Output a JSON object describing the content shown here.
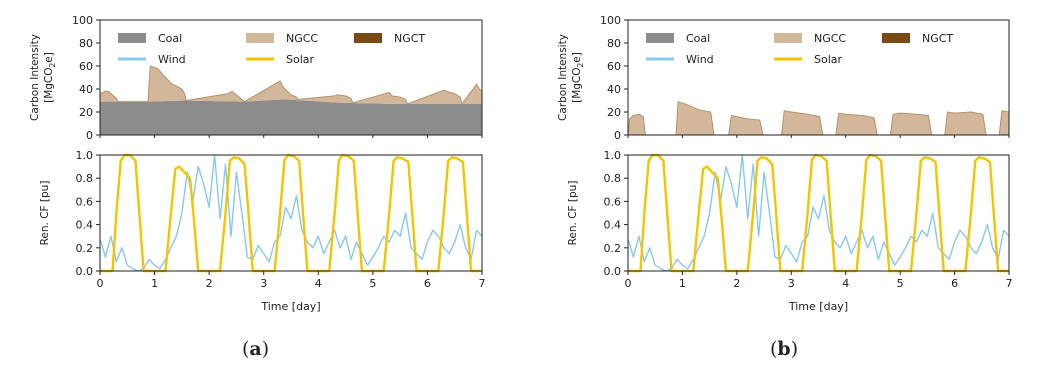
{
  "chart_data": [
    {
      "panel": "(a)",
      "type": "area",
      "ylabel": "Carbon Intensity [MgCO2e]",
      "ylabel_line1": "Carbon Intensity",
      "ylabel_line2_parts": [
        "[MgCO",
        "2",
        "e]"
      ],
      "ylim": [
        0,
        100
      ],
      "yticks": [
        0,
        20,
        40,
        60,
        80,
        100
      ],
      "xlim": [
        0,
        7
      ],
      "xticks": [
        0,
        1,
        2,
        3,
        4,
        5,
        6,
        7
      ],
      "legend": {
        "placement": "top",
        "entries": [
          "Coal",
          "NGCC",
          "NGCT",
          "Wind",
          "Solar"
        ]
      },
      "series": [
        {
          "name": "Coal",
          "x": [
            0,
            0.9,
            1.55,
            2.6,
            3.4,
            4.4,
            5.4,
            6.3,
            7
          ],
          "values": [
            29,
            29,
            30,
            29,
            31,
            28,
            27,
            27,
            27
          ]
        },
        {
          "name": "NGCC",
          "x": [
            0,
            0.1,
            0.15,
            0.3,
            0.33,
            0.88,
            0.92,
            1.05,
            1.3,
            1.5,
            1.55,
            1.58,
            2.35,
            2.42,
            2.55,
            2.62,
            2.65,
            3.3,
            3.35,
            3.5,
            3.6,
            3.63,
            4.3,
            4.35,
            4.5,
            4.6,
            4.63,
            5.3,
            5.35,
            5.5,
            5.6,
            5.63,
            6.3,
            6.35,
            6.5,
            6.6,
            6.63,
            6.9,
            6.95,
            7
          ],
          "values": [
            36,
            38,
            38,
            32,
            29,
            29,
            60,
            58,
            45,
            40,
            36,
            30,
            36,
            38,
            33,
            30,
            29,
            47,
            42,
            35,
            33,
            31,
            34,
            35,
            34,
            32,
            28,
            37,
            34,
            33,
            31,
            27,
            39,
            38,
            36,
            33,
            27,
            44,
            40,
            38
          ]
        },
        {
          "name": "NGCT",
          "values": []
        }
      ]
    },
    {
      "panel": "(a)",
      "type": "line",
      "ylabel": "Ren. CF [pu]",
      "xlabel": "Time [day]",
      "ylim": [
        0,
        1.0
      ],
      "yticks": [
        "0.0",
        "0.2",
        "0.4",
        "0.6",
        "0.8",
        "1.0"
      ],
      "xlim": [
        0,
        7
      ],
      "xticks": [
        0,
        1,
        2,
        3,
        4,
        5,
        6,
        7
      ],
      "series": [
        {
          "name": "Wind",
          "x": [
            0,
            0.1,
            0.2,
            0.3,
            0.4,
            0.5,
            0.6,
            0.7,
            0.8,
            0.9,
            1.0,
            1.1,
            1.2,
            1.3,
            1.4,
            1.5,
            1.6,
            1.7,
            1.8,
            1.9,
            2.0,
            2.1,
            2.2,
            2.3,
            2.4,
            2.5,
            2.6,
            2.7,
            2.8,
            2.9,
            3.0,
            3.1,
            3.2,
            3.3,
            3.4,
            3.5,
            3.6,
            3.7,
            3.8,
            3.9,
            4.0,
            4.1,
            4.2,
            4.3,
            4.4,
            4.5,
            4.6,
            4.7,
            4.8,
            4.9,
            5.0,
            5.1,
            5.2,
            5.3,
            5.4,
            5.5,
            5.6,
            5.7,
            5.8,
            5.9,
            6.0,
            6.1,
            6.2,
            6.3,
            6.4,
            6.5,
            6.6,
            6.7,
            6.8,
            6.9,
            7.0
          ],
          "values": [
            0.28,
            0.12,
            0.3,
            0.08,
            0.2,
            0.05,
            0.02,
            0.0,
            0.02,
            0.1,
            0.05,
            0.02,
            0.1,
            0.2,
            0.3,
            0.5,
            0.85,
            0.6,
            0.9,
            0.75,
            0.55,
            1.0,
            0.45,
            0.92,
            0.3,
            0.85,
            0.5,
            0.12,
            0.1,
            0.22,
            0.15,
            0.08,
            0.25,
            0.3,
            0.55,
            0.45,
            0.65,
            0.35,
            0.25,
            0.2,
            0.3,
            0.15,
            0.25,
            0.35,
            0.2,
            0.3,
            0.1,
            0.25,
            0.15,
            0.05,
            0.12,
            0.2,
            0.3,
            0.25,
            0.35,
            0.3,
            0.5,
            0.2,
            0.15,
            0.1,
            0.25,
            0.35,
            0.3,
            0.2,
            0.15,
            0.25,
            0.4,
            0.2,
            0.1,
            0.35,
            0.3
          ]
        },
        {
          "name": "Solar",
          "x": [
            0,
            0.23,
            0.3,
            0.38,
            0.45,
            0.55,
            0.65,
            0.72,
            0.8,
            1.2,
            1.3,
            1.38,
            1.45,
            1.55,
            1.65,
            1.72,
            1.8,
            2.2,
            2.3,
            2.38,
            2.45,
            2.55,
            2.65,
            2.72,
            2.8,
            3.2,
            3.3,
            3.38,
            3.45,
            3.55,
            3.65,
            3.72,
            3.8,
            4.2,
            4.3,
            4.38,
            4.45,
            4.55,
            4.65,
            4.72,
            4.8,
            5.2,
            5.3,
            5.38,
            5.45,
            5.55,
            5.65,
            5.72,
            5.8,
            6.2,
            6.3,
            6.38,
            6.45,
            6.55,
            6.65,
            6.72,
            6.8,
            7.0
          ],
          "values": [
            0,
            0,
            0.5,
            0.95,
            1.0,
            1.0,
            0.95,
            0.5,
            0,
            0,
            0.5,
            0.88,
            0.9,
            0.85,
            0.8,
            0.45,
            0,
            0,
            0.5,
            0.95,
            0.98,
            0.97,
            0.92,
            0.5,
            0,
            0,
            0.5,
            0.96,
            1.0,
            0.99,
            0.95,
            0.5,
            0,
            0,
            0.5,
            0.96,
            1.0,
            0.99,
            0.95,
            0.5,
            0,
            0,
            0.5,
            0.95,
            0.98,
            0.97,
            0.94,
            0.5,
            0,
            0,
            0.5,
            0.95,
            0.98,
            0.97,
            0.94,
            0.5,
            0,
            0
          ]
        }
      ]
    },
    {
      "panel": "(b)",
      "type": "area",
      "ylabel": "Carbon Intensity [MgCO2e]",
      "ylabel_line1": "Carbon Intensity",
      "ylabel_line2_parts": [
        "[MgCO",
        "2",
        "e]"
      ],
      "ylim": [
        0,
        100
      ],
      "yticks": [
        0,
        20,
        40,
        60,
        80,
        100
      ],
      "xlim": [
        0,
        7
      ],
      "xticks": [
        0,
        1,
        2,
        3,
        4,
        5,
        6,
        7
      ],
      "legend": {
        "placement": "top",
        "entries": [
          "Coal",
          "NGCC",
          "NGCT",
          "Wind",
          "Solar"
        ]
      },
      "series": [
        {
          "name": "Coal",
          "values": []
        },
        {
          "name": "NGCC",
          "x": [
            0,
            0.03,
            0.1,
            0.2,
            0.28,
            0.32,
            0.88,
            0.92,
            1.05,
            1.3,
            1.52,
            1.58,
            1.85,
            1.9,
            2.0,
            2.2,
            2.42,
            2.48,
            2.82,
            2.87,
            3.0,
            3.3,
            3.52,
            3.58,
            3.82,
            3.87,
            4.0,
            4.3,
            4.52,
            4.58,
            4.82,
            4.87,
            5.0,
            5.3,
            5.52,
            5.58,
            5.82,
            5.87,
            6.0,
            6.3,
            6.52,
            6.58,
            6.82,
            6.87,
            7.0
          ],
          "values": [
            0,
            14,
            17,
            18,
            16,
            0,
            0,
            29,
            27,
            22,
            20,
            0,
            0,
            17,
            16,
            14,
            13,
            0,
            0,
            21,
            20,
            18,
            16,
            0,
            0,
            19,
            18,
            17,
            15,
            0,
            0,
            18,
            19,
            18,
            17,
            0,
            0,
            20,
            19,
            20,
            18,
            0,
            0,
            21,
            20
          ]
        },
        {
          "name": "NGCT",
          "values": []
        }
      ]
    },
    {
      "panel": "(b)",
      "type": "line",
      "ylabel": "Ren. CF [pu]",
      "xlabel": "Time [day]",
      "ylim": [
        0,
        1.0
      ],
      "yticks": [
        "0.0",
        "0.2",
        "0.4",
        "0.6",
        "0.8",
        "1.0"
      ],
      "xlim": [
        0,
        7
      ],
      "xticks": [
        0,
        1,
        2,
        3,
        4,
        5,
        6,
        7
      ],
      "series": [
        {
          "name": "Wind",
          "x": [
            0,
            0.1,
            0.2,
            0.3,
            0.4,
            0.5,
            0.6,
            0.7,
            0.8,
            0.9,
            1.0,
            1.1,
            1.2,
            1.3,
            1.4,
            1.5,
            1.6,
            1.7,
            1.8,
            1.9,
            2.0,
            2.1,
            2.2,
            2.3,
            2.4,
            2.5,
            2.6,
            2.7,
            2.8,
            2.9,
            3.0,
            3.1,
            3.2,
            3.3,
            3.4,
            3.5,
            3.6,
            3.7,
            3.8,
            3.9,
            4.0,
            4.1,
            4.2,
            4.3,
            4.4,
            4.5,
            4.6,
            4.7,
            4.8,
            4.9,
            5.0,
            5.1,
            5.2,
            5.3,
            5.4,
            5.5,
            5.6,
            5.7,
            5.8,
            5.9,
            6.0,
            6.1,
            6.2,
            6.3,
            6.4,
            6.5,
            6.6,
            6.7,
            6.8,
            6.9,
            7.0
          ],
          "values": [
            0.28,
            0.12,
            0.3,
            0.08,
            0.2,
            0.05,
            0.02,
            0.0,
            0.02,
            0.1,
            0.05,
            0.02,
            0.1,
            0.2,
            0.3,
            0.5,
            0.85,
            0.6,
            0.9,
            0.75,
            0.55,
            1.0,
            0.45,
            0.92,
            0.3,
            0.85,
            0.5,
            0.12,
            0.1,
            0.22,
            0.15,
            0.08,
            0.25,
            0.3,
            0.55,
            0.45,
            0.65,
            0.35,
            0.25,
            0.2,
            0.3,
            0.15,
            0.25,
            0.35,
            0.2,
            0.3,
            0.1,
            0.25,
            0.15,
            0.05,
            0.12,
            0.2,
            0.3,
            0.25,
            0.35,
            0.3,
            0.5,
            0.2,
            0.15,
            0.1,
            0.25,
            0.35,
            0.3,
            0.2,
            0.15,
            0.25,
            0.4,
            0.2,
            0.1,
            0.35,
            0.3
          ]
        },
        {
          "name": "Solar",
          "x": [
            0,
            0.23,
            0.3,
            0.38,
            0.45,
            0.55,
            0.65,
            0.72,
            0.8,
            1.2,
            1.3,
            1.38,
            1.45,
            1.55,
            1.65,
            1.72,
            1.8,
            2.2,
            2.3,
            2.38,
            2.45,
            2.55,
            2.65,
            2.72,
            2.8,
            3.2,
            3.3,
            3.38,
            3.45,
            3.55,
            3.65,
            3.72,
            3.8,
            4.2,
            4.3,
            4.38,
            4.45,
            4.55,
            4.65,
            4.72,
            4.8,
            5.2,
            5.3,
            5.38,
            5.45,
            5.55,
            5.65,
            5.72,
            5.8,
            6.2,
            6.3,
            6.38,
            6.45,
            6.55,
            6.65,
            6.72,
            6.8,
            7.0
          ],
          "values": [
            0,
            0,
            0.5,
            0.95,
            1.0,
            1.0,
            0.95,
            0.5,
            0,
            0,
            0.5,
            0.88,
            0.9,
            0.85,
            0.8,
            0.45,
            0,
            0,
            0.5,
            0.95,
            0.98,
            0.97,
            0.92,
            0.5,
            0,
            0,
            0.5,
            0.96,
            1.0,
            0.99,
            0.95,
            0.5,
            0,
            0,
            0.5,
            0.96,
            1.0,
            0.99,
            0.95,
            0.5,
            0,
            0,
            0.5,
            0.95,
            0.98,
            0.97,
            0.94,
            0.5,
            0,
            0,
            0.5,
            0.95,
            0.98,
            0.97,
            0.94,
            0.5,
            0,
            0
          ]
        }
      ]
    }
  ],
  "colors": {
    "Coal": "#8c8c8c",
    "NGCC": "#d2b79a",
    "NGCC_edge": "#b8916a",
    "NGCT": "#7a4a12",
    "Wind": "#86c8ee",
    "Solar": "#f2c500",
    "axis": "#222222"
  },
  "captions": {
    "a": {
      "open": "(",
      "letter": "a",
      "close": ")"
    },
    "b": {
      "open": "(",
      "letter": "b",
      "close": ")"
    }
  }
}
